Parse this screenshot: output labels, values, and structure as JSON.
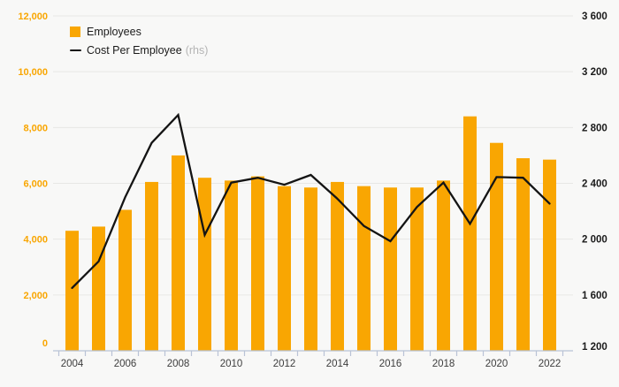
{
  "chart_data": {
    "type": "bar",
    "subtype": "bar+line-dual-axis",
    "categories": [
      "2004",
      "2005",
      "2006",
      "2007",
      "2008",
      "2009",
      "2010",
      "2011",
      "2012",
      "2013",
      "2014",
      "2015",
      "2016",
      "2017",
      "2018",
      "2019",
      "2020",
      "2021",
      "2022"
    ],
    "series": [
      {
        "name": "Employees",
        "type": "bar",
        "axis": "left",
        "color": "#F9A602",
        "values": [
          4300,
          4450,
          5050,
          6050,
          7000,
          6200,
          6100,
          6250,
          5900,
          5850,
          6050,
          5900,
          5850,
          5850,
          6100,
          8400,
          7450,
          6900,
          6850
        ]
      },
      {
        "name": "Cost Per Employee",
        "type": "line",
        "axis": "right",
        "color": "#141414",
        "values": [
          1650,
          1840,
          2300,
          2690,
          2890,
          2030,
          2405,
          2440,
          2390,
          2460,
          2290,
          2095,
          1985,
          2230,
          2405,
          2110,
          2445,
          2440,
          2255
        ]
      }
    ],
    "left_axis": {
      "min": 0,
      "max": 12000,
      "tick_labels": [
        "12,000",
        "10,000",
        "8,000",
        "6,000",
        "4,000",
        "2,000",
        "0"
      ],
      "color": "#F9A602"
    },
    "right_axis": {
      "min": 1200,
      "max": 3600,
      "tick_labels": [
        "3 600",
        "3 200",
        "2 800",
        "2 400",
        "2 000",
        "1 600",
        "1 200"
      ],
      "color": "#1b1b1b"
    },
    "x_tick_labels": [
      "2004",
      "2006",
      "2008",
      "2010",
      "2012",
      "2014",
      "2016",
      "2018",
      "2020",
      "2022"
    ],
    "legend": [
      {
        "label": "Employees",
        "marker": "square"
      },
      {
        "label": "Cost Per Employee",
        "suffix": "(rhs)",
        "marker": "line"
      }
    ],
    "grid": "horizontal",
    "legend_position": "top-left"
  },
  "colors": {
    "background": "#f8f8f7",
    "accent_orange": "#F9A602",
    "gridline": "#e7e7e5",
    "axis_line": "#b9c3d6",
    "line_series": "#141414",
    "x_label": "#3d3d3d",
    "rhs_note": "#b4b4b4"
  }
}
